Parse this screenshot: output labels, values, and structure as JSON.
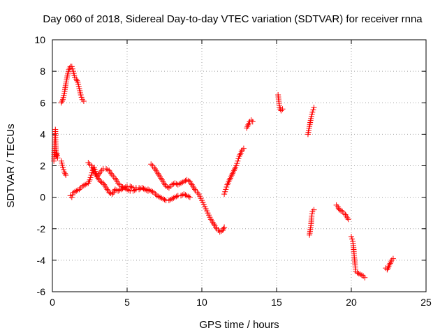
{
  "chart_data": {
    "type": "scatter",
    "title": "Day 060 of 2018, Sidereal Day-to-day VTEC variation (SDTVAR) for receiver rnna",
    "xlabel": "GPS time / hours",
    "ylabel": "SDTVAR / TECUs",
    "xlim": [
      0,
      25
    ],
    "ylim": [
      -6,
      10
    ],
    "xticks": [
      "0",
      "5",
      "10",
      "15",
      "20",
      "25"
    ],
    "yticks": [
      "-6",
      "-4",
      "-2",
      "0",
      "2",
      "4",
      "6",
      "8",
      "10"
    ],
    "grid": true,
    "marker": "+",
    "color": "#ff0000",
    "series": [
      {
        "name": "s1",
        "points": [
          [
            0.1,
            2.3
          ],
          [
            0.15,
            3.5
          ],
          [
            0.2,
            4.3
          ],
          [
            0.25,
            2.6
          ],
          [
            0.3,
            2.8
          ],
          [
            0.35,
            2.5
          ]
        ]
      },
      {
        "name": "s2",
        "points": [
          [
            0.6,
            6.0
          ],
          [
            0.7,
            6.2
          ],
          [
            0.8,
            6.6
          ],
          [
            0.9,
            7.2
          ],
          [
            1.0,
            7.7
          ],
          [
            1.1,
            8.1
          ],
          [
            1.2,
            8.3
          ],
          [
            1.3,
            8.3
          ],
          [
            1.4,
            8.0
          ],
          [
            1.5,
            7.6
          ],
          [
            1.6,
            7.5
          ],
          [
            1.7,
            7.3
          ],
          [
            1.8,
            6.9
          ],
          [
            1.9,
            6.5
          ],
          [
            2.0,
            6.2
          ],
          [
            2.1,
            6.1
          ]
        ]
      },
      {
        "name": "s3",
        "points": [
          [
            0.6,
            2.3
          ],
          [
            0.7,
            1.9
          ],
          [
            0.8,
            1.6
          ],
          [
            0.9,
            1.4
          ]
        ]
      },
      {
        "name": "s4",
        "points": [
          [
            1.2,
            0.1
          ],
          [
            1.3,
            0.0
          ],
          [
            1.4,
            0.3
          ],
          [
            1.6,
            0.4
          ],
          [
            1.8,
            0.5
          ],
          [
            2.0,
            0.7
          ],
          [
            2.2,
            0.8
          ],
          [
            2.4,
            0.9
          ],
          [
            2.5,
            1.1
          ],
          [
            2.6,
            1.4
          ],
          [
            2.7,
            1.7
          ],
          [
            2.8,
            1.9
          ],
          [
            2.9,
            1.5
          ],
          [
            3.0,
            1.3
          ],
          [
            3.2,
            1.6
          ],
          [
            3.4,
            1.8
          ],
          [
            3.6,
            1.8
          ],
          [
            3.8,
            1.7
          ],
          [
            4.0,
            1.4
          ],
          [
            4.2,
            1.2
          ],
          [
            4.4,
            0.9
          ],
          [
            4.6,
            0.7
          ],
          [
            4.8,
            0.6
          ],
          [
            5.0,
            0.5
          ],
          [
            5.2,
            0.4
          ],
          [
            5.4,
            0.4
          ],
          [
            5.6,
            0.5
          ],
          [
            5.8,
            0.5
          ],
          [
            6.0,
            0.6
          ],
          [
            6.2,
            0.5
          ],
          [
            6.4,
            0.5
          ],
          [
            6.6,
            0.4
          ],
          [
            6.8,
            0.3
          ],
          [
            7.0,
            0.1
          ],
          [
            7.2,
            0.0
          ],
          [
            7.4,
            -0.1
          ],
          [
            7.6,
            -0.2
          ],
          [
            7.8,
            -0.2
          ],
          [
            8.0,
            -0.1
          ],
          [
            8.2,
            0.0
          ],
          [
            8.4,
            0.1
          ],
          [
            8.6,
            0.1
          ],
          [
            8.8,
            0.2
          ],
          [
            9.0,
            0.1
          ],
          [
            9.2,
            0.0
          ]
        ]
      },
      {
        "name": "s5",
        "points": [
          [
            2.4,
            2.2
          ],
          [
            2.6,
            2.0
          ],
          [
            2.8,
            1.6
          ],
          [
            3.0,
            1.3
          ],
          [
            3.2,
            1.0
          ],
          [
            3.4,
            0.9
          ],
          [
            3.6,
            0.6
          ],
          [
            3.8,
            0.3
          ],
          [
            4.0,
            0.2
          ],
          [
            4.2,
            0.5
          ],
          [
            4.4,
            0.4
          ],
          [
            4.6,
            0.5
          ],
          [
            4.8,
            0.6
          ],
          [
            5.0,
            0.7
          ],
          [
            5.2,
            0.7
          ],
          [
            5.4,
            0.6
          ],
          [
            5.6,
            0.6
          ],
          [
            5.8,
            0.6
          ],
          [
            6.0,
            0.6
          ],
          [
            6.2,
            0.5
          ],
          [
            6.4,
            0.4
          ]
        ]
      },
      {
        "name": "s6",
        "points": [
          [
            6.6,
            2.1
          ],
          [
            6.8,
            1.9
          ],
          [
            7.0,
            1.6
          ],
          [
            7.2,
            1.3
          ],
          [
            7.4,
            1.0
          ],
          [
            7.6,
            0.7
          ],
          [
            7.8,
            0.6
          ],
          [
            8.0,
            0.8
          ],
          [
            8.2,
            0.9
          ],
          [
            8.4,
            0.8
          ],
          [
            8.6,
            0.9
          ],
          [
            8.8,
            1.0
          ],
          [
            9.0,
            1.1
          ],
          [
            9.2,
            1.0
          ],
          [
            9.4,
            0.7
          ],
          [
            9.6,
            0.4
          ],
          [
            9.8,
            0.2
          ],
          [
            10.0,
            -0.2
          ],
          [
            10.2,
            -0.6
          ],
          [
            10.4,
            -1.0
          ],
          [
            10.6,
            -1.4
          ],
          [
            10.8,
            -1.7
          ],
          [
            11.0,
            -2.0
          ],
          [
            11.2,
            -2.2
          ],
          [
            11.4,
            -2.1
          ],
          [
            11.5,
            -1.9
          ]
        ]
      },
      {
        "name": "s7",
        "points": [
          [
            11.5,
            0.2
          ],
          [
            11.6,
            0.5
          ],
          [
            11.7,
            0.8
          ],
          [
            11.8,
            1.0
          ],
          [
            11.9,
            1.2
          ],
          [
            12.0,
            1.4
          ],
          [
            12.1,
            1.6
          ],
          [
            12.2,
            1.8
          ],
          [
            12.3,
            2.0
          ],
          [
            12.4,
            2.3
          ],
          [
            12.5,
            2.6
          ],
          [
            12.6,
            2.8
          ],
          [
            12.7,
            3.0
          ],
          [
            12.8,
            3.1
          ]
        ]
      },
      {
        "name": "s8",
        "points": [
          [
            13.0,
            4.4
          ],
          [
            13.1,
            4.6
          ],
          [
            13.2,
            4.8
          ],
          [
            13.3,
            4.9
          ],
          [
            13.4,
            4.8
          ]
        ]
      },
      {
        "name": "s9",
        "points": [
          [
            15.1,
            6.5
          ],
          [
            15.15,
            6.1
          ],
          [
            15.2,
            5.7
          ],
          [
            15.3,
            5.5
          ],
          [
            15.4,
            5.6
          ]
        ]
      },
      {
        "name": "s10",
        "points": [
          [
            17.1,
            4.0
          ],
          [
            17.2,
            4.5
          ],
          [
            17.3,
            5.0
          ],
          [
            17.4,
            5.4
          ],
          [
            17.5,
            5.7
          ]
        ]
      },
      {
        "name": "s11",
        "points": [
          [
            17.2,
            -2.4
          ],
          [
            17.3,
            -1.8
          ],
          [
            17.35,
            -1.2
          ],
          [
            17.4,
            -0.9
          ],
          [
            17.5,
            -0.8
          ]
        ]
      },
      {
        "name": "s12",
        "points": [
          [
            19.0,
            -0.5
          ],
          [
            19.1,
            -0.6
          ],
          [
            19.2,
            -0.8
          ],
          [
            19.4,
            -0.9
          ],
          [
            19.6,
            -1.1
          ],
          [
            19.8,
            -1.4
          ]
        ]
      },
      {
        "name": "s13",
        "points": [
          [
            20.0,
            -2.5
          ],
          [
            20.1,
            -2.8
          ],
          [
            20.15,
            -3.2
          ],
          [
            20.2,
            -3.8
          ],
          [
            20.25,
            -4.3
          ],
          [
            20.3,
            -4.7
          ],
          [
            20.4,
            -4.8
          ],
          [
            20.6,
            -4.9
          ],
          [
            20.8,
            -5.0
          ],
          [
            20.9,
            -5.1
          ]
        ]
      },
      {
        "name": "s14",
        "points": [
          [
            22.3,
            -4.5
          ],
          [
            22.4,
            -4.6
          ],
          [
            22.5,
            -4.4
          ],
          [
            22.6,
            -4.2
          ],
          [
            22.7,
            -4.0
          ],
          [
            22.8,
            -3.9
          ]
        ]
      }
    ]
  }
}
